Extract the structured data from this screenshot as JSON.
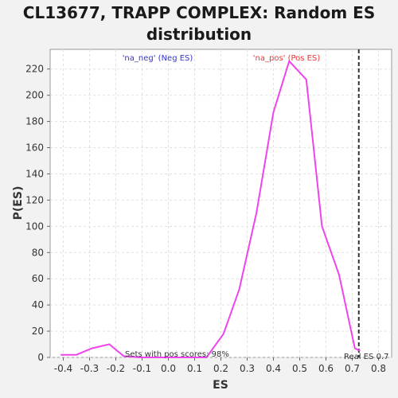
{
  "chart_data": {
    "type": "line",
    "title_line1": "CL13677, TRAPP COMPLEX: Random ES",
    "title_line2": "distribution",
    "xlabel": "ES",
    "ylabel": "P(ES)",
    "xlim": [
      -0.45,
      0.85
    ],
    "ylim": [
      0,
      235
    ],
    "xticks": [
      "-0.4",
      "-0.3",
      "-0.2",
      "-0.1",
      "0.0",
      "0.1",
      "0.2",
      "0.3",
      "0.4",
      "0.5",
      "0.6",
      "0.7",
      "0.8"
    ],
    "yticks": [
      "0",
      "20",
      "40",
      "60",
      "80",
      "100",
      "120",
      "140",
      "160",
      "180",
      "200",
      "220"
    ],
    "grid": true,
    "series": [
      {
        "color": "#ee44ee",
        "x": [
          -0.41,
          -0.35,
          -0.29,
          -0.225,
          -0.17,
          -0.11,
          -0.045,
          0.02,
          0.08,
          0.145,
          0.21,
          0.27,
          0.335,
          0.4,
          0.46,
          0.525,
          0.585,
          0.65,
          0.71,
          0.73
        ],
        "y": [
          2,
          2,
          7,
          10,
          1,
          0,
          0,
          0,
          0,
          0,
          18,
          52,
          110,
          187,
          226,
          212,
          100,
          63,
          7,
          5
        ]
      }
    ],
    "real_es": 0.725,
    "real_es_label": "Real ES 0.7",
    "annotations": {
      "neg": "'na_neg' (Neg ES)",
      "pos": "'na_pos' (Pos ES)",
      "pos_scores": "Sets with pos scores: 98%"
    },
    "colors": {
      "neg": "#3333cc",
      "pos": "#ee3333",
      "line": "#ee44ee",
      "real_es": "#333333"
    }
  }
}
